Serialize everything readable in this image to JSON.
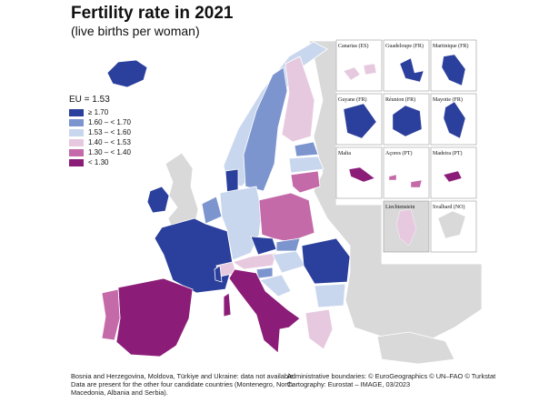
{
  "title": "Fertility rate in 2021",
  "subtitle": "(live births per woman)",
  "legend": {
    "title": "EU = 1.53",
    "items": [
      {
        "label": "≥ 1.70",
        "color": "#2b3f9c"
      },
      {
        "label": "1.60 – < 1.70",
        "color": "#7d95cf"
      },
      {
        "label": "1.53 – < 1.60",
        "color": "#c9d7ee"
      },
      {
        "label": "1.40 – < 1.53",
        "color": "#e6c9df"
      },
      {
        "label": "1.30 – < 1.40",
        "color": "#c46aa8"
      },
      {
        "label": "< 1.30",
        "color": "#8b1d78"
      }
    ]
  },
  "insets": [
    "Canarias (ES)",
    "Guadeloupe (FR)",
    "Martinique (FR)",
    "Guyane (FR)",
    "Réunion (FR)",
    "Mayotte (FR)",
    "Malta",
    "Açores (PT)",
    "Madeira (PT)",
    "Liechtenstein",
    "Svalbard (NO)"
  ],
  "footnote": [
    "Bosnia and Herzegovina, Moldova, Türkiye and Ukraine: data not available.",
    "Data are present for the other four candidate countries (Montenegro, North",
    "Macedonia, Albania and Serbia)."
  ],
  "credits": [
    "Administrative boundaries: © EuroGeographics © UN–FAO © Turkstat",
    "Cartography: Eurostat – IMAGE, 03/2023"
  ]
}
